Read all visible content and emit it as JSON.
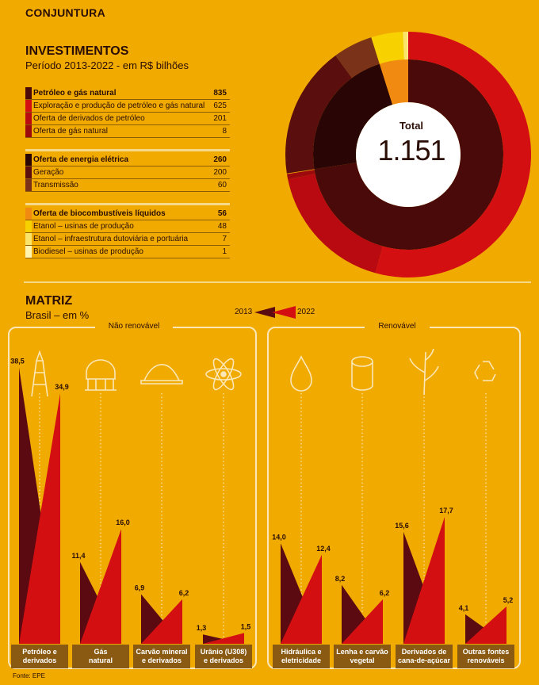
{
  "header": {
    "section": "CONJUNTURA"
  },
  "investimentos": {
    "title": "INVESTIMENTOS",
    "subtitle": "Período 2013-2022 - em R$ bilhões",
    "total_label": "Total",
    "total_value": "1.151",
    "groups": [
      {
        "label": "Petróleo e gás natural",
        "value": 835,
        "value_text": "835",
        "color": "#4a0a0a",
        "items": [
          {
            "label": "Exploração e produção de petróleo e gás natural",
            "value": 625,
            "value_text": "625",
            "color": "#d40f12"
          },
          {
            "label": "Oferta de derivados de petróleo",
            "value": 201,
            "value_text": "201",
            "color": "#b80a10"
          },
          {
            "label": "Oferta de gás natural",
            "value": 8,
            "value_text": "8",
            "color": "#9c0a0e"
          }
        ]
      },
      {
        "label": "Oferta de energia elétrica",
        "value": 260,
        "value_text": "260",
        "color": "#2a0505",
        "items": [
          {
            "label": "Geração",
            "value": 200,
            "value_text": "200",
            "color": "#5a0e0e"
          },
          {
            "label": "Transmissão",
            "value": 60,
            "value_text": "60",
            "color": "#7a3218"
          }
        ]
      },
      {
        "label": "Oferta de biocombustíveis líquidos",
        "value": 56,
        "value_text": "56",
        "color": "#f08a10",
        "items": [
          {
            "label": "Etanol – usinas de produção",
            "value": 48,
            "value_text": "48",
            "color": "#f7d200"
          },
          {
            "label": "Etanol – infraestrutura dutoviária e portuária",
            "value": 7,
            "value_text": "7",
            "color": "#fbe46a"
          },
          {
            "label": "Biodiesel – usinas de produção",
            "value": 1,
            "value_text": "1",
            "color": "#fff4b0"
          }
        ]
      }
    ]
  },
  "matriz": {
    "title": "MATRIZ",
    "subtitle": "Brasil – em %",
    "legend": {
      "year1": "2013",
      "year2": "2022"
    },
    "panel_nonrenewable": "Não renovável",
    "panel_renewable": "Renovável",
    "source": "Fonte: EPE"
  },
  "chart_data": {
    "type": "area",
    "years": [
      "2013",
      "2022"
    ],
    "ylim": [
      0,
      40
    ],
    "categories": [
      {
        "name": "Petróleo e derivados",
        "group": "Não renovável",
        "v2013": 38.5,
        "v2022": 34.9,
        "l2013": "38,5",
        "l2022": "34,9",
        "icon": "oil-rig-icon",
        "label_lines": [
          "Petróleo e",
          "derivados"
        ]
      },
      {
        "name": "Gás natural",
        "group": "Não renovável",
        "v2013": 11.4,
        "v2022": 16.0,
        "l2013": "11,4",
        "l2022": "16,0",
        "icon": "gas-tank-icon",
        "label_lines": [
          "Gás",
          "natural"
        ]
      },
      {
        "name": "Carvão mineral e derivados",
        "group": "Não renovável",
        "v2013": 6.9,
        "v2022": 6.2,
        "l2013": "6,9",
        "l2022": "6,2",
        "icon": "coal-pile-icon",
        "label_lines": [
          "Carvão mineral",
          "e derivados"
        ]
      },
      {
        "name": "Urânio (U308) e derivados",
        "group": "Não renovável",
        "v2013": 1.3,
        "v2022": 1.5,
        "l2013": "1,3",
        "l2022": "1,5",
        "icon": "atom-icon",
        "label_lines": [
          "Urânio (U308)",
          "e derivados"
        ]
      },
      {
        "name": "Hidráulica e eletricidade",
        "group": "Renovável",
        "v2013": 14.0,
        "v2022": 12.4,
        "l2013": "14,0",
        "l2022": "12,4",
        "icon": "water-drop-icon",
        "label_lines": [
          "Hidráulica e",
          "eletricidade"
        ]
      },
      {
        "name": "Lenha e carvão vegetal",
        "group": "Renovável",
        "v2013": 8.2,
        "v2022": 6.2,
        "l2013": "8,2",
        "l2022": "6,2",
        "icon": "log-icon",
        "label_lines": [
          "Lenha e carvão",
          "vegetal"
        ]
      },
      {
        "name": "Derivados de cana-de-açúcar",
        "group": "Renovável",
        "v2013": 15.6,
        "v2022": 17.7,
        "l2013": "15,6",
        "l2022": "17,7",
        "icon": "sugarcane-icon",
        "label_lines": [
          "Derivados de",
          "cana-de-açúcar"
        ]
      },
      {
        "name": "Outras fontes renováveis",
        "group": "Renovável",
        "v2013": 4.1,
        "v2022": 5.2,
        "l2013": "4,1",
        "l2022": "5,2",
        "icon": "recycle-icon",
        "label_lines": [
          "Outras fontes",
          "renováveis"
        ]
      }
    ],
    "colors": {
      "y2013": "#5a0a10",
      "y2022": "#d40f12"
    }
  }
}
